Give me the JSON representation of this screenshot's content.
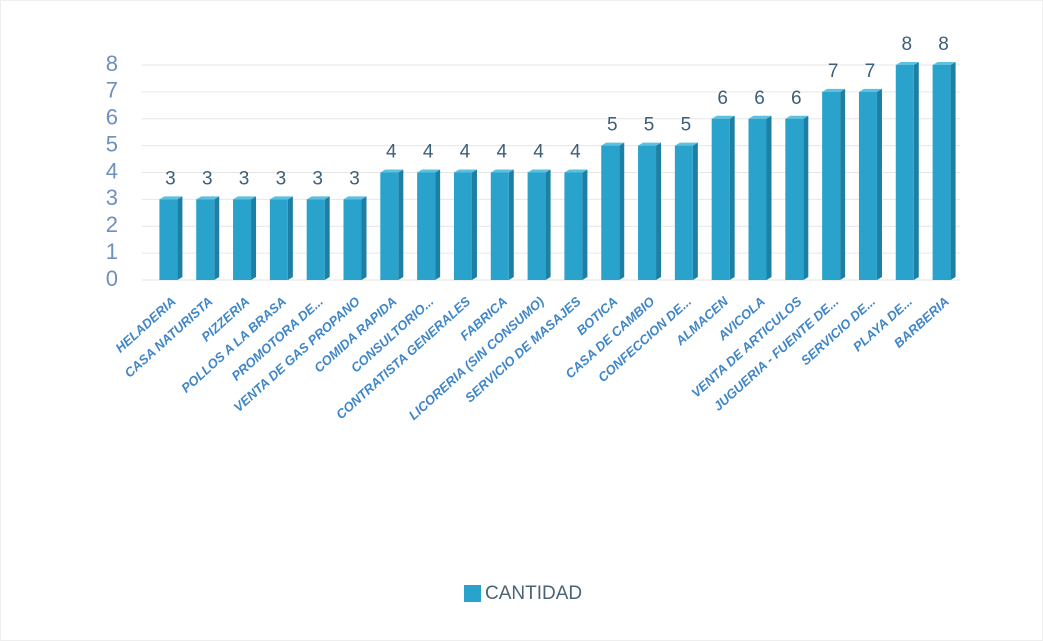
{
  "chart_data": {
    "type": "bar",
    "categories": [
      "HELADERIA",
      "CASA NATURISTA",
      "PIZZERIA",
      "POLLOS A LA BRASA",
      "PROMOTORA DE...",
      "VENTA DE GAS PROPANO",
      "COMIDA RAPIDA",
      "CONSULTORIO...",
      "CONTRATISTA GENERALES",
      "FABRICA",
      "LICORERIA (SIN CONSUMO)",
      "SERVICIO DE MASAJES",
      "BOTICA",
      "CASA DE CAMBIO",
      "CONFECCION DE...",
      "ALMACEN",
      "AVICOLA",
      "VENTA DE ARTICULOS",
      "JUGUERIA - FUENTE DE...",
      "SERVICIO DE...",
      "PLAYA DE...",
      "BARBERIA"
    ],
    "series": [
      {
        "name": "CANTIDAD",
        "color": "#29a3cc",
        "values": [
          3,
          3,
          3,
          3,
          3,
          3,
          4,
          4,
          4,
          4,
          4,
          4,
          5,
          5,
          5,
          6,
          6,
          6,
          7,
          7,
          8,
          8
        ]
      }
    ],
    "ylim": [
      0,
      8
    ],
    "yticks": [
      0,
      1,
      2,
      3,
      4,
      5,
      6,
      7,
      8
    ],
    "grid": true,
    "legend": "bottom"
  }
}
